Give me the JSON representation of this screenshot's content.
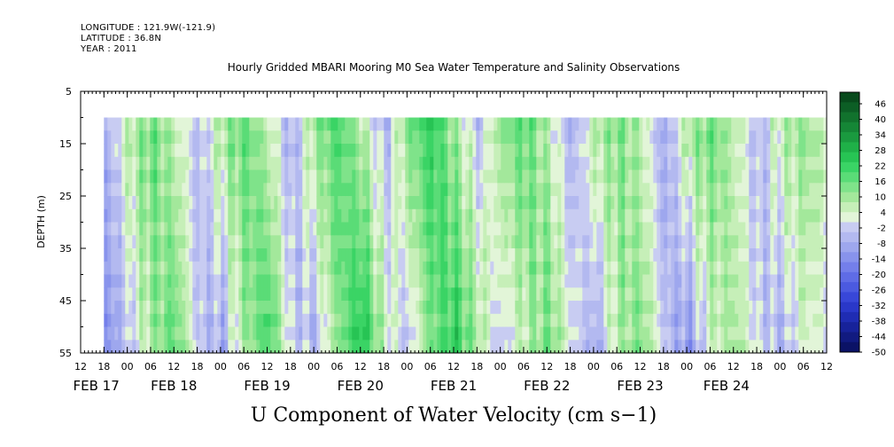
{
  "header": {
    "longitude": "LONGITUDE : 121.9W(-121.9)",
    "latitude": "LATITUDE : 36.8N",
    "year": "YEAR : 2011"
  },
  "chart_data": {
    "type": "heatmap",
    "title": "Hourly Gridded MBARI Mooring M0 Sea Water Temperature and Salinity Observations",
    "bottom_title": "U Component of Water Velocity (cm s−1)",
    "ylabel": "DEPTH (m)",
    "y_axis": {
      "inverted": true,
      "range": [
        5,
        55
      ],
      "ticks": [
        5,
        15,
        25,
        35,
        45,
        55
      ],
      "data_range": [
        10,
        55
      ]
    },
    "x_axis": {
      "hour_ticks": [
        "12",
        "18",
        "00",
        "06",
        "12",
        "18",
        "00",
        "06",
        "12",
        "18",
        "00",
        "06",
        "12",
        "18",
        "00",
        "06",
        "12",
        "18",
        "00",
        "06",
        "12",
        "18",
        "00",
        "06",
        "12",
        "18",
        "00",
        "06",
        "12",
        "18",
        "00",
        "06",
        "12"
      ],
      "date_labels": [
        "FEB 17",
        "FEB 18",
        "FEB 19",
        "FEB 20",
        "FEB 21",
        "FEB 22",
        "FEB 23",
        "FEB 24"
      ],
      "data_start_hour_index": 1
    },
    "colorbar": {
      "labels": [
        "46",
        "40",
        "34",
        "28",
        "22",
        "16",
        "10",
        "4",
        "-2",
        "-8",
        "-14",
        "-20",
        "-26",
        "-32",
        "-38",
        "-44",
        "-50"
      ],
      "positive_colors": [
        "#e2f5d8",
        "#c6efb8",
        "#a3e89b",
        "#7fe38a",
        "#5adc77",
        "#3ad465",
        "#27c454",
        "#1fb048",
        "#1a9a3f",
        "#158636",
        "#11722d",
        "#0c5e25",
        "#084a1c"
      ],
      "negative_colors": [
        "#c8ccf2",
        "#b3b9f0",
        "#9ea7ee",
        "#8893ec",
        "#747fea",
        "#5f6ce6",
        "#4b5ae0",
        "#3847d8",
        "#2a38c9",
        "#1f2cb3",
        "#17229a",
        "#111a80",
        "#0b1266"
      ]
    },
    "velocity_profile": {
      "description_note": "",
      "hours": [
        0,
        6,
        12,
        18,
        24,
        30,
        36,
        42,
        48,
        54,
        60,
        66,
        72,
        78,
        84,
        90,
        96,
        102,
        108,
        114,
        120,
        126,
        132,
        138,
        144,
        150,
        156,
        162,
        168,
        174,
        180,
        186,
        192
      ],
      "surface_values": [
        -8,
        8,
        16,
        6,
        -6,
        10,
        18,
        6,
        -8,
        12,
        20,
        8,
        -6,
        14,
        24,
        10,
        -4,
        12,
        18,
        6,
        -8,
        8,
        14,
        6,
        -10,
        10,
        16,
        6,
        -6,
        8,
        12,
        6,
        4
      ],
      "bottom_values": [
        -16,
        -4,
        10,
        18,
        -4,
        -10,
        10,
        22,
        -2,
        -8,
        12,
        28,
        6,
        -6,
        14,
        24,
        10,
        -4,
        6,
        16,
        2,
        -10,
        8,
        14,
        -4,
        -14,
        4,
        10,
        -2,
        -8,
        4,
        -2,
        -6
      ]
    }
  }
}
